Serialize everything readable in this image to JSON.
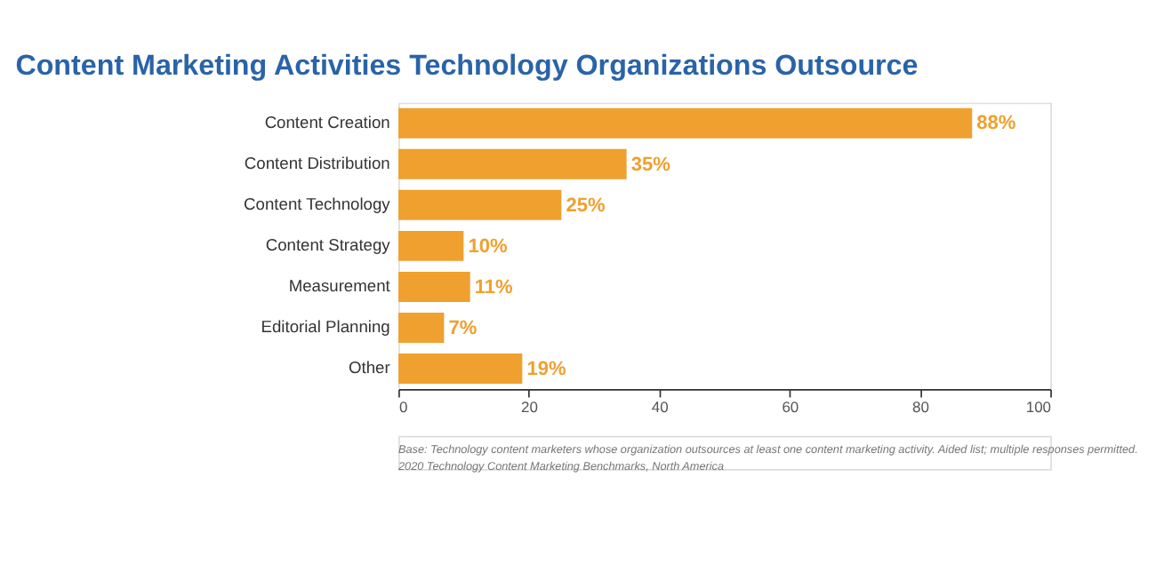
{
  "chart_data": {
    "type": "bar",
    "orientation": "horizontal",
    "title": "Content Marketing Activities Technology Organizations Outsource",
    "categories": [
      "Content Creation",
      "Content Distribution",
      "Content Technology",
      "Content Strategy",
      "Measurement",
      "Editorial Planning",
      "Other"
    ],
    "values": [
      88,
      35,
      25,
      10,
      11,
      7,
      19
    ],
    "value_labels": [
      "88%",
      "35%",
      "25%",
      "10%",
      "11%",
      "7%",
      "19%"
    ],
    "color": "#f0a02e",
    "xlim": [
      0,
      100
    ],
    "xticks": [
      0,
      20,
      40,
      60,
      80,
      100
    ],
    "grid": false,
    "annotations": [
      "Base: Technology content marketers whose organization outsources at least one content marketing activity. Aided list; multiple responses permitted.",
      "2020 Technology Content Marketing Benchmarks, North America"
    ]
  }
}
